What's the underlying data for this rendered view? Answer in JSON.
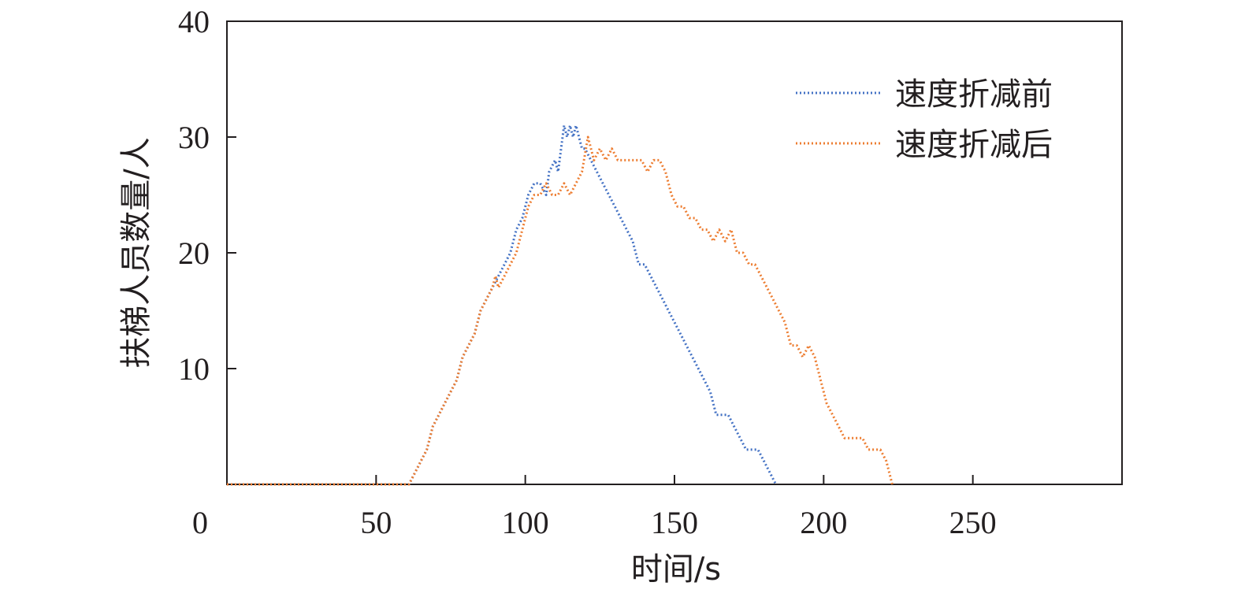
{
  "chart_data": {
    "type": "line",
    "title": "",
    "xlabel": "时间/s",
    "ylabel": "扶梯人员数量/人",
    "xlim": [
      0,
      300
    ],
    "ylim": [
      0,
      40
    ],
    "x_ticks": [
      0,
      50,
      100,
      150,
      200,
      250
    ],
    "y_ticks": [
      10,
      20,
      30,
      40
    ],
    "grid": false,
    "legend": "top-right",
    "line_style": "dotted",
    "series": [
      {
        "name": "速度折减前",
        "color": "#4472c4",
        "x": [
          0,
          61,
          63,
          65,
          67,
          69,
          71,
          73,
          75,
          77,
          79,
          81,
          83,
          85,
          87,
          89,
          91,
          93,
          95,
          97,
          99,
          101,
          103,
          105,
          107,
          108,
          110,
          111,
          112,
          113,
          114,
          115,
          116,
          117,
          118,
          119,
          120,
          122,
          124,
          126,
          128,
          130,
          132,
          134,
          136,
          138,
          140,
          142,
          144,
          146,
          148,
          150,
          152,
          154,
          156,
          158,
          160,
          162,
          164,
          166,
          168,
          170,
          172,
          174,
          176,
          178,
          180,
          182,
          184
        ],
        "values": [
          0,
          0,
          1,
          2,
          3,
          5,
          6,
          7,
          8,
          9,
          11,
          12,
          13,
          15,
          16,
          17,
          18,
          19,
          20,
          22,
          23,
          25,
          26,
          26,
          25,
          27,
          28,
          27,
          29,
          31,
          30,
          31,
          30,
          31,
          30,
          29,
          29,
          28,
          27,
          26,
          25,
          24,
          23,
          22,
          21,
          19,
          19,
          18,
          17,
          16,
          15,
          14,
          13,
          12,
          11,
          10,
          9,
          8,
          6,
          6,
          6,
          5,
          4,
          3,
          3,
          3,
          2,
          1,
          0
        ]
      },
      {
        "name": "速度折减后",
        "color": "#ed7d31",
        "x": [
          0,
          61,
          63,
          65,
          67,
          69,
          71,
          73,
          75,
          77,
          79,
          81,
          83,
          85,
          87,
          89,
          90,
          91,
          93,
          95,
          97,
          99,
          101,
          103,
          105,
          107,
          109,
          111,
          113,
          115,
          117,
          119,
          121,
          123,
          125,
          127,
          129,
          131,
          133,
          135,
          137,
          139,
          141,
          143,
          145,
          147,
          149,
          151,
          153,
          155,
          157,
          159,
          161,
          163,
          165,
          167,
          169,
          171,
          173,
          175,
          177,
          179,
          181,
          183,
          185,
          187,
          189,
          191,
          193,
          195,
          197,
          199,
          201,
          203,
          205,
          207,
          209,
          211,
          213,
          215,
          217,
          219,
          221,
          223
        ],
        "values": [
          0,
          0,
          1,
          2,
          3,
          5,
          6,
          7,
          8,
          9,
          11,
          12,
          13,
          15,
          16,
          17,
          18,
          17,
          18,
          19,
          20,
          22,
          24,
          25,
          25,
          26,
          25,
          25,
          26,
          25,
          26,
          27,
          30,
          28,
          29,
          28,
          29,
          28,
          28,
          28,
          28,
          28,
          27,
          28,
          28,
          27,
          25,
          24,
          24,
          23,
          23,
          22,
          22,
          21,
          22,
          21,
          22,
          20,
          20,
          19,
          19,
          18,
          17,
          16,
          15,
          14,
          12,
          12,
          11,
          12,
          11,
          9,
          7,
          6,
          5,
          4,
          4,
          4,
          4,
          3,
          3,
          3,
          2,
          0
        ]
      }
    ]
  }
}
